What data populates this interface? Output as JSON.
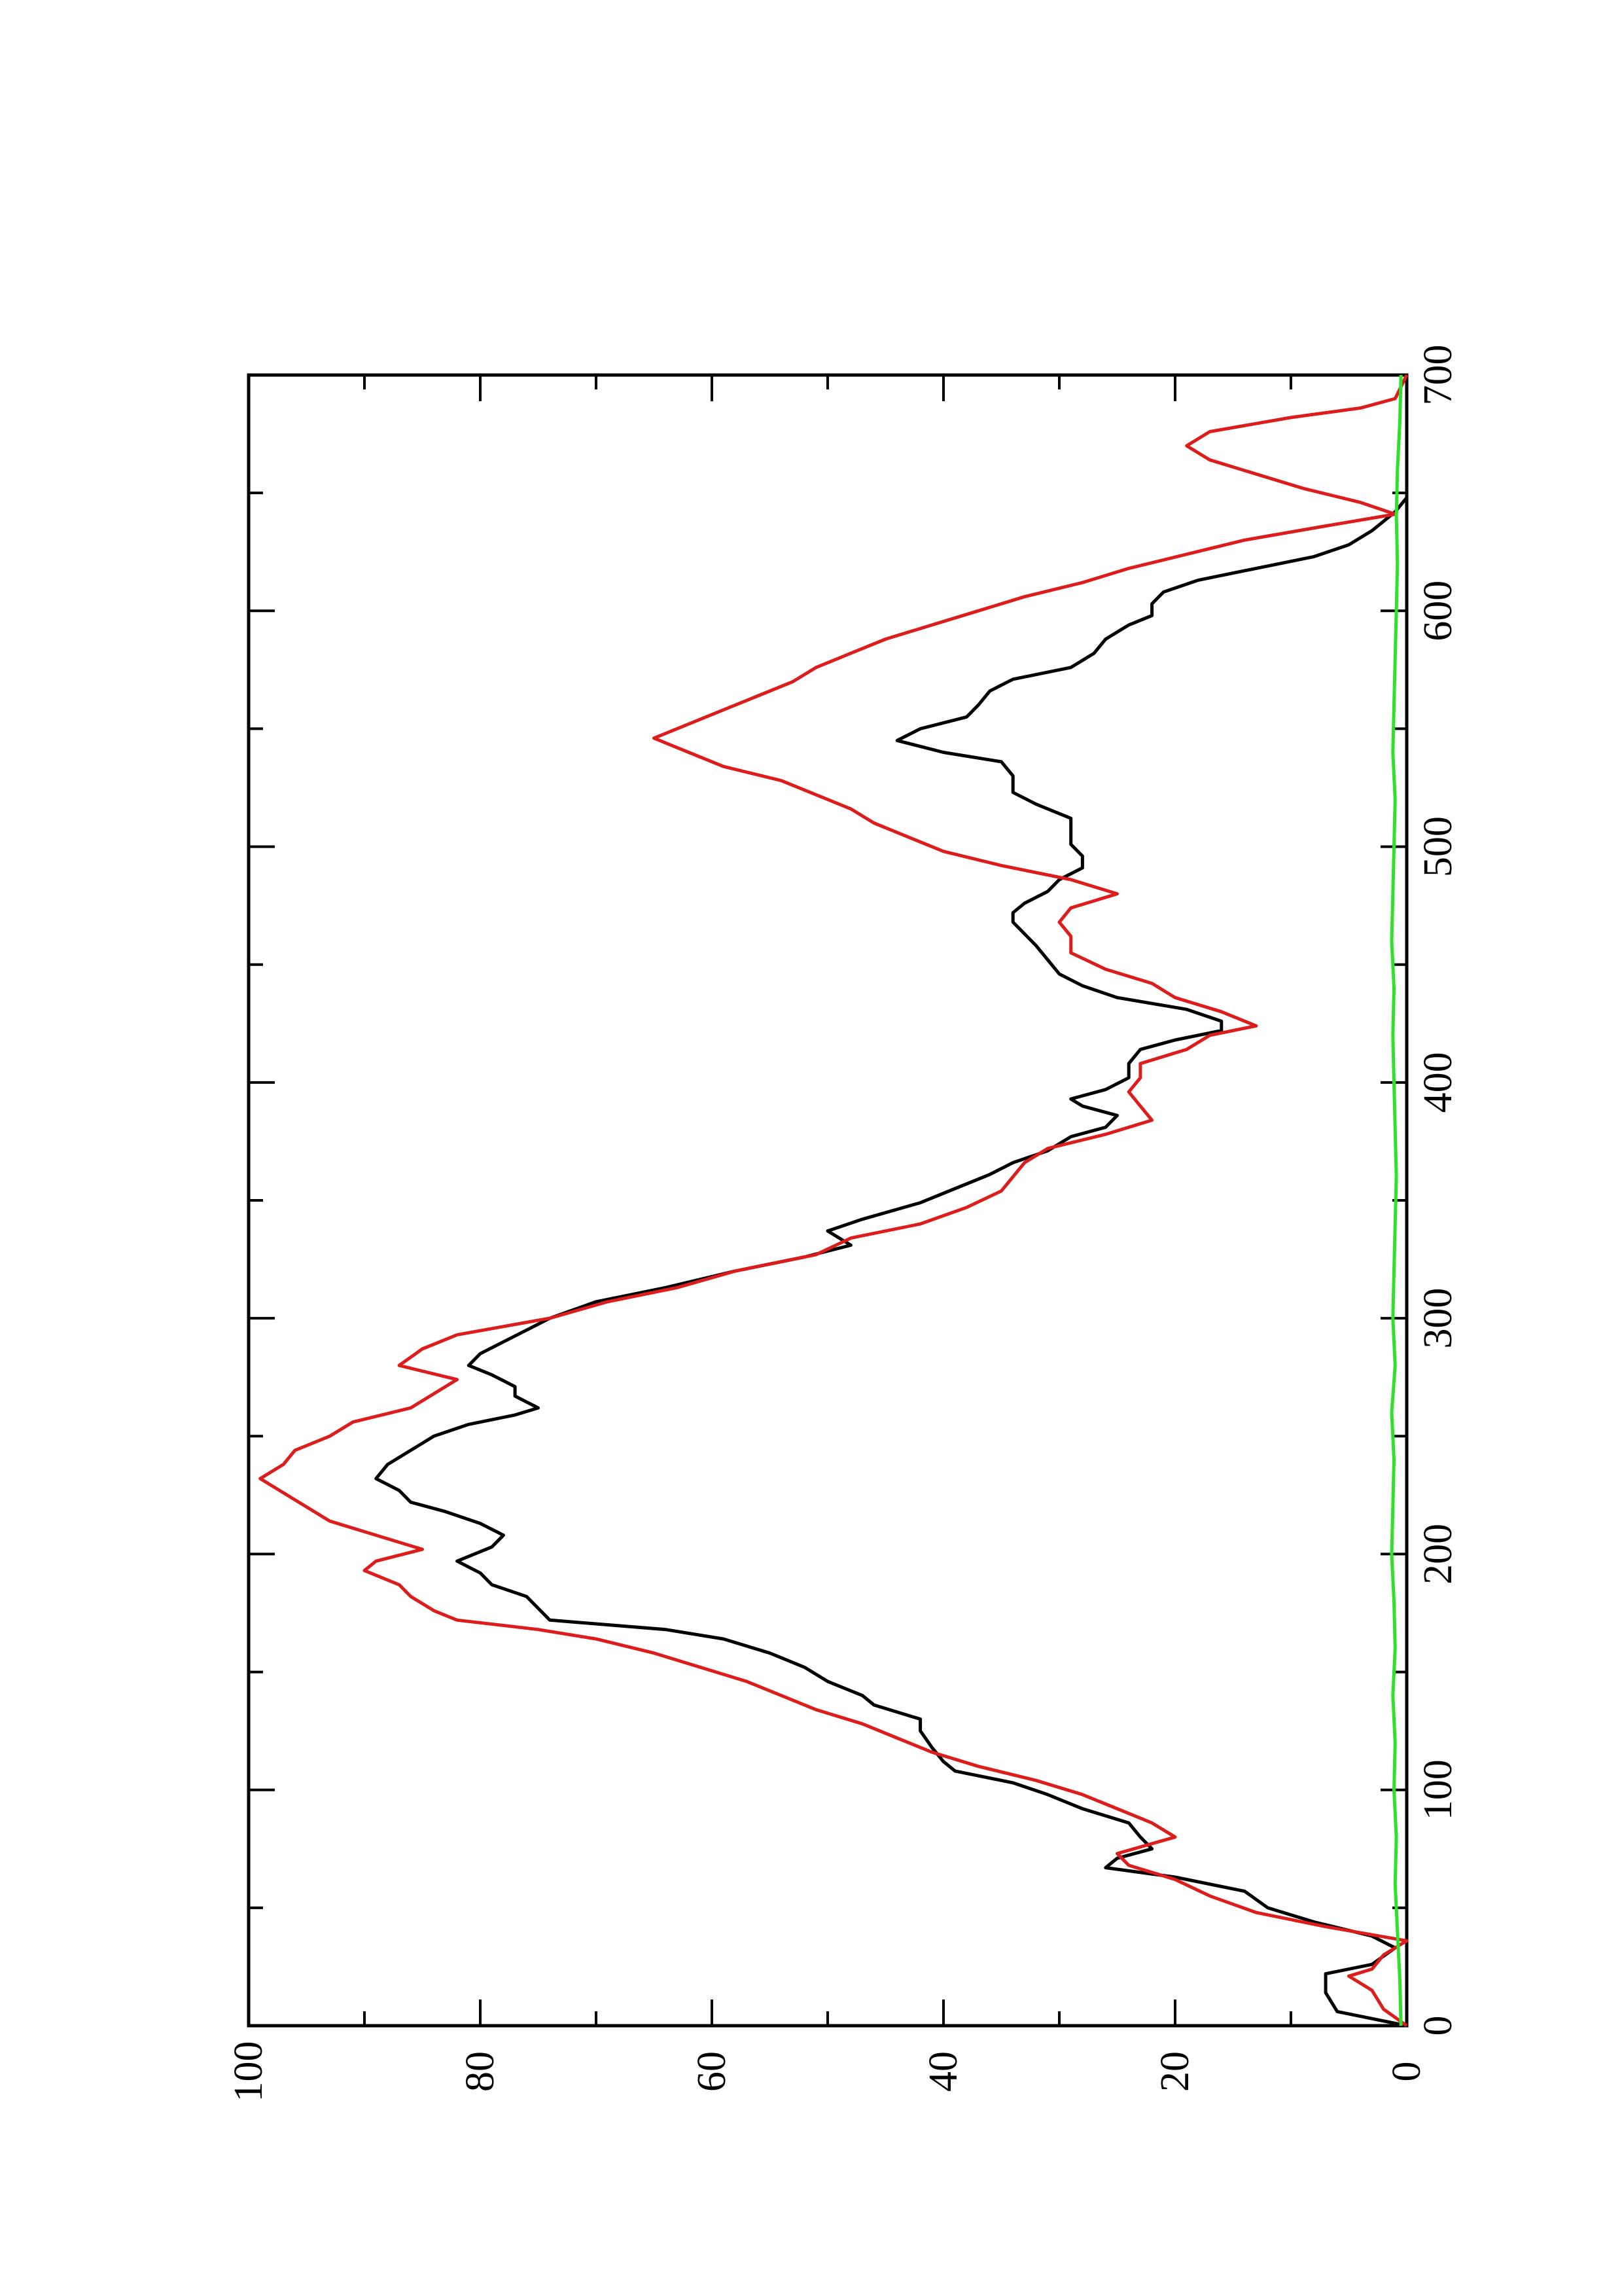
{
  "chart_data": {
    "type": "line",
    "title": "",
    "xlabel": "",
    "ylabel": "",
    "orientation": "rotated-90-counterclockwise",
    "xlim": [
      0,
      700
    ],
    "ylim": [
      0,
      100
    ],
    "x_ticks": [
      0,
      100,
      200,
      300,
      400,
      500,
      600,
      700
    ],
    "x_minor_ticks": [
      50,
      150,
      250,
      350,
      450,
      550,
      650
    ],
    "y_ticks": [
      0,
      20,
      40,
      60,
      80,
      100
    ],
    "y_minor_ticks": [
      10,
      30,
      50,
      70,
      90
    ],
    "x_tick_labels": [
      "0",
      "100",
      "200",
      "300",
      "400",
      "500",
      "600",
      "700"
    ],
    "y_tick_labels": [
      "0",
      "20",
      "40",
      "60",
      "80",
      "100"
    ],
    "grid": false,
    "legend": "none",
    "series": [
      {
        "color": "#000000",
        "points": [
          [
            0,
            0
          ],
          [
            6,
            6
          ],
          [
            14,
            7
          ],
          [
            22,
            7
          ],
          [
            26,
            3
          ],
          [
            33,
            1
          ],
          [
            38,
            3
          ],
          [
            44,
            8
          ],
          [
            50,
            12
          ],
          [
            57,
            14
          ],
          [
            63,
            20
          ],
          [
            67,
            26
          ],
          [
            71,
            25
          ],
          [
            75,
            22
          ],
          [
            80,
            23
          ],
          [
            86,
            24
          ],
          [
            92,
            28
          ],
          [
            98,
            31
          ],
          [
            103,
            34
          ],
          [
            108,
            39
          ],
          [
            112,
            40
          ],
          [
            118,
            41
          ],
          [
            125,
            42
          ],
          [
            130,
            42
          ],
          [
            136,
            46
          ],
          [
            140,
            47
          ],
          [
            146,
            50
          ],
          [
            152,
            52
          ],
          [
            158,
            55
          ],
          [
            164,
            59
          ],
          [
            168,
            64
          ],
          [
            172,
            74
          ],
          [
            177,
            75
          ],
          [
            182,
            76
          ],
          [
            187,
            79
          ],
          [
            192,
            80
          ],
          [
            197,
            82
          ],
          [
            203,
            79
          ],
          [
            208,
            78
          ],
          [
            213,
            80
          ],
          [
            218,
            83
          ],
          [
            222,
            86
          ],
          [
            227,
            87
          ],
          [
            232,
            89
          ],
          [
            238,
            88
          ],
          [
            244,
            86
          ],
          [
            250,
            84
          ],
          [
            255,
            81
          ],
          [
            259,
            77
          ],
          [
            262,
            75
          ],
          [
            267,
            77
          ],
          [
            271,
            77
          ],
          [
            276,
            79
          ],
          [
            280,
            81
          ],
          [
            285,
            80
          ],
          [
            290,
            78
          ],
          [
            295,
            76
          ],
          [
            300,
            74
          ],
          [
            307,
            70
          ],
          [
            313,
            64
          ],
          [
            320,
            58
          ],
          [
            326,
            52
          ],
          [
            331,
            48
          ],
          [
            337,
            50
          ],
          [
            342,
            47
          ],
          [
            349,
            42
          ],
          [
            355,
            39
          ],
          [
            361,
            36
          ],
          [
            366,
            34
          ],
          [
            371,
            31
          ],
          [
            377,
            29
          ],
          [
            381,
            26
          ],
          [
            386,
            25
          ],
          [
            390,
            28
          ],
          [
            393,
            29
          ],
          [
            397,
            26
          ],
          [
            402,
            24
          ],
          [
            408,
            24
          ],
          [
            414,
            23
          ],
          [
            418,
            20
          ],
          [
            422,
            16
          ],
          [
            426,
            16
          ],
          [
            431,
            19
          ],
          [
            436,
            25
          ],
          [
            441,
            28
          ],
          [
            446,
            30
          ],
          [
            452,
            31
          ],
          [
            458,
            32
          ],
          [
            463,
            33
          ],
          [
            468,
            34
          ],
          [
            472,
            34
          ],
          [
            476,
            33
          ],
          [
            481,
            31
          ],
          [
            486,
            30
          ],
          [
            491,
            28
          ],
          [
            496,
            28
          ],
          [
            501,
            29
          ],
          [
            506,
            29
          ],
          [
            512,
            29
          ],
          [
            518,
            32
          ],
          [
            523,
            34
          ],
          [
            530,
            34
          ],
          [
            536,
            35
          ],
          [
            540,
            40
          ],
          [
            545,
            44
          ],
          [
            550,
            42
          ],
          [
            555,
            38
          ],
          [
            560,
            37
          ],
          [
            566,
            36
          ],
          [
            571,
            34
          ],
          [
            576,
            29
          ],
          [
            582,
            27
          ],
          [
            588,
            26
          ],
          [
            594,
            24
          ],
          [
            598,
            22
          ],
          [
            603,
            22
          ],
          [
            608,
            21
          ],
          [
            613,
            18
          ],
          [
            618,
            13
          ],
          [
            623,
            8
          ],
          [
            628,
            5
          ],
          [
            634,
            3
          ],
          [
            638,
            2
          ],
          [
            642,
            1
          ],
          [
            648,
            0
          ],
          [
            700,
            0
          ]
        ]
      },
      {
        "color": "#dd1c1c",
        "points": [
          [
            0,
            0
          ],
          [
            7,
            2
          ],
          [
            15,
            3
          ],
          [
            21,
            5
          ],
          [
            24,
            3
          ],
          [
            30,
            2
          ],
          [
            36,
            0
          ],
          [
            42,
            7
          ],
          [
            48,
            13
          ],
          [
            55,
            17
          ],
          [
            62,
            20
          ],
          [
            68,
            24
          ],
          [
            73,
            25
          ],
          [
            80,
            20
          ],
          [
            86,
            22
          ],
          [
            92,
            25
          ],
          [
            98,
            28
          ],
          [
            104,
            32
          ],
          [
            110,
            37
          ],
          [
            116,
            41
          ],
          [
            122,
            44
          ],
          [
            128,
            47
          ],
          [
            134,
            51
          ],
          [
            140,
            54
          ],
          [
            146,
            57
          ],
          [
            152,
            61
          ],
          [
            158,
            65
          ],
          [
            164,
            70
          ],
          [
            168,
            75
          ],
          [
            172,
            82
          ],
          [
            176,
            84
          ],
          [
            182,
            86
          ],
          [
            187,
            87
          ],
          [
            193,
            90
          ],
          [
            197,
            89
          ],
          [
            202,
            85
          ],
          [
            208,
            89
          ],
          [
            214,
            93
          ],
          [
            220,
            95
          ],
          [
            226,
            97
          ],
          [
            232,
            99
          ],
          [
            238,
            97
          ],
          [
            244,
            96
          ],
          [
            250,
            93
          ],
          [
            256,
            91
          ],
          [
            262,
            86
          ],
          [
            268,
            84
          ],
          [
            274,
            82
          ],
          [
            280,
            87
          ],
          [
            287,
            85
          ],
          [
            293,
            82
          ],
          [
            300,
            74
          ],
          [
            307,
            69
          ],
          [
            313,
            63
          ],
          [
            320,
            58
          ],
          [
            327,
            51
          ],
          [
            334,
            48
          ],
          [
            340,
            42
          ],
          [
            347,
            38
          ],
          [
            354,
            35
          ],
          [
            360,
            34
          ],
          [
            366,
            33
          ],
          [
            372,
            31
          ],
          [
            378,
            26
          ],
          [
            384,
            22
          ],
          [
            390,
            23
          ],
          [
            396,
            24
          ],
          [
            402,
            23
          ],
          [
            408,
            23
          ],
          [
            414,
            19
          ],
          [
            420,
            17
          ],
          [
            424,
            13
          ],
          [
            430,
            16
          ],
          [
            436,
            20
          ],
          [
            442,
            22
          ],
          [
            448,
            26
          ],
          [
            455,
            29
          ],
          [
            462,
            29
          ],
          [
            468,
            30
          ],
          [
            474,
            29
          ],
          [
            480,
            25
          ],
          [
            486,
            29
          ],
          [
            492,
            35
          ],
          [
            498,
            40
          ],
          [
            504,
            43
          ],
          [
            510,
            46
          ],
          [
            516,
            48
          ],
          [
            522,
            51
          ],
          [
            528,
            54
          ],
          [
            534,
            59
          ],
          [
            540,
            62
          ],
          [
            546,
            65
          ],
          [
            552,
            62
          ],
          [
            558,
            59
          ],
          [
            564,
            56
          ],
          [
            570,
            53
          ],
          [
            576,
            51
          ],
          [
            582,
            48
          ],
          [
            588,
            45
          ],
          [
            594,
            41
          ],
          [
            600,
            37
          ],
          [
            606,
            33
          ],
          [
            612,
            28
          ],
          [
            618,
            24
          ],
          [
            624,
            19
          ],
          [
            630,
            14
          ],
          [
            636,
            7
          ],
          [
            641,
            1
          ],
          [
            646,
            4
          ],
          [
            652,
            9
          ],
          [
            658,
            13
          ],
          [
            664,
            17
          ],
          [
            670,
            19
          ],
          [
            676,
            17
          ],
          [
            682,
            10
          ],
          [
            686,
            4
          ],
          [
            690,
            1
          ],
          [
            700,
            0
          ]
        ]
      },
      {
        "color": "#2ee22a",
        "points": [
          [
            0,
            0.5
          ],
          [
            20,
            0.6
          ],
          [
            40,
            0.8
          ],
          [
            60,
            1.0
          ],
          [
            80,
            0.9
          ],
          [
            100,
            1.1
          ],
          [
            120,
            1.0
          ],
          [
            140,
            1.2
          ],
          [
            160,
            1.0
          ],
          [
            180,
            1.1
          ],
          [
            200,
            1.3
          ],
          [
            220,
            1.2
          ],
          [
            240,
            1.1
          ],
          [
            260,
            1.3
          ],
          [
            280,
            1.0
          ],
          [
            300,
            1.2
          ],
          [
            320,
            1.1
          ],
          [
            340,
            1.0
          ],
          [
            360,
            0.9
          ],
          [
            380,
            1.0
          ],
          [
            400,
            1.1
          ],
          [
            420,
            1.2
          ],
          [
            440,
            1.1
          ],
          [
            460,
            1.3
          ],
          [
            480,
            1.2
          ],
          [
            500,
            1.1
          ],
          [
            520,
            1.0
          ],
          [
            540,
            1.2
          ],
          [
            560,
            1.1
          ],
          [
            580,
            1.0
          ],
          [
            600,
            0.9
          ],
          [
            620,
            0.8
          ],
          [
            640,
            0.9
          ],
          [
            660,
            0.8
          ],
          [
            680,
            0.6
          ],
          [
            700,
            0.5
          ]
        ]
      }
    ]
  }
}
